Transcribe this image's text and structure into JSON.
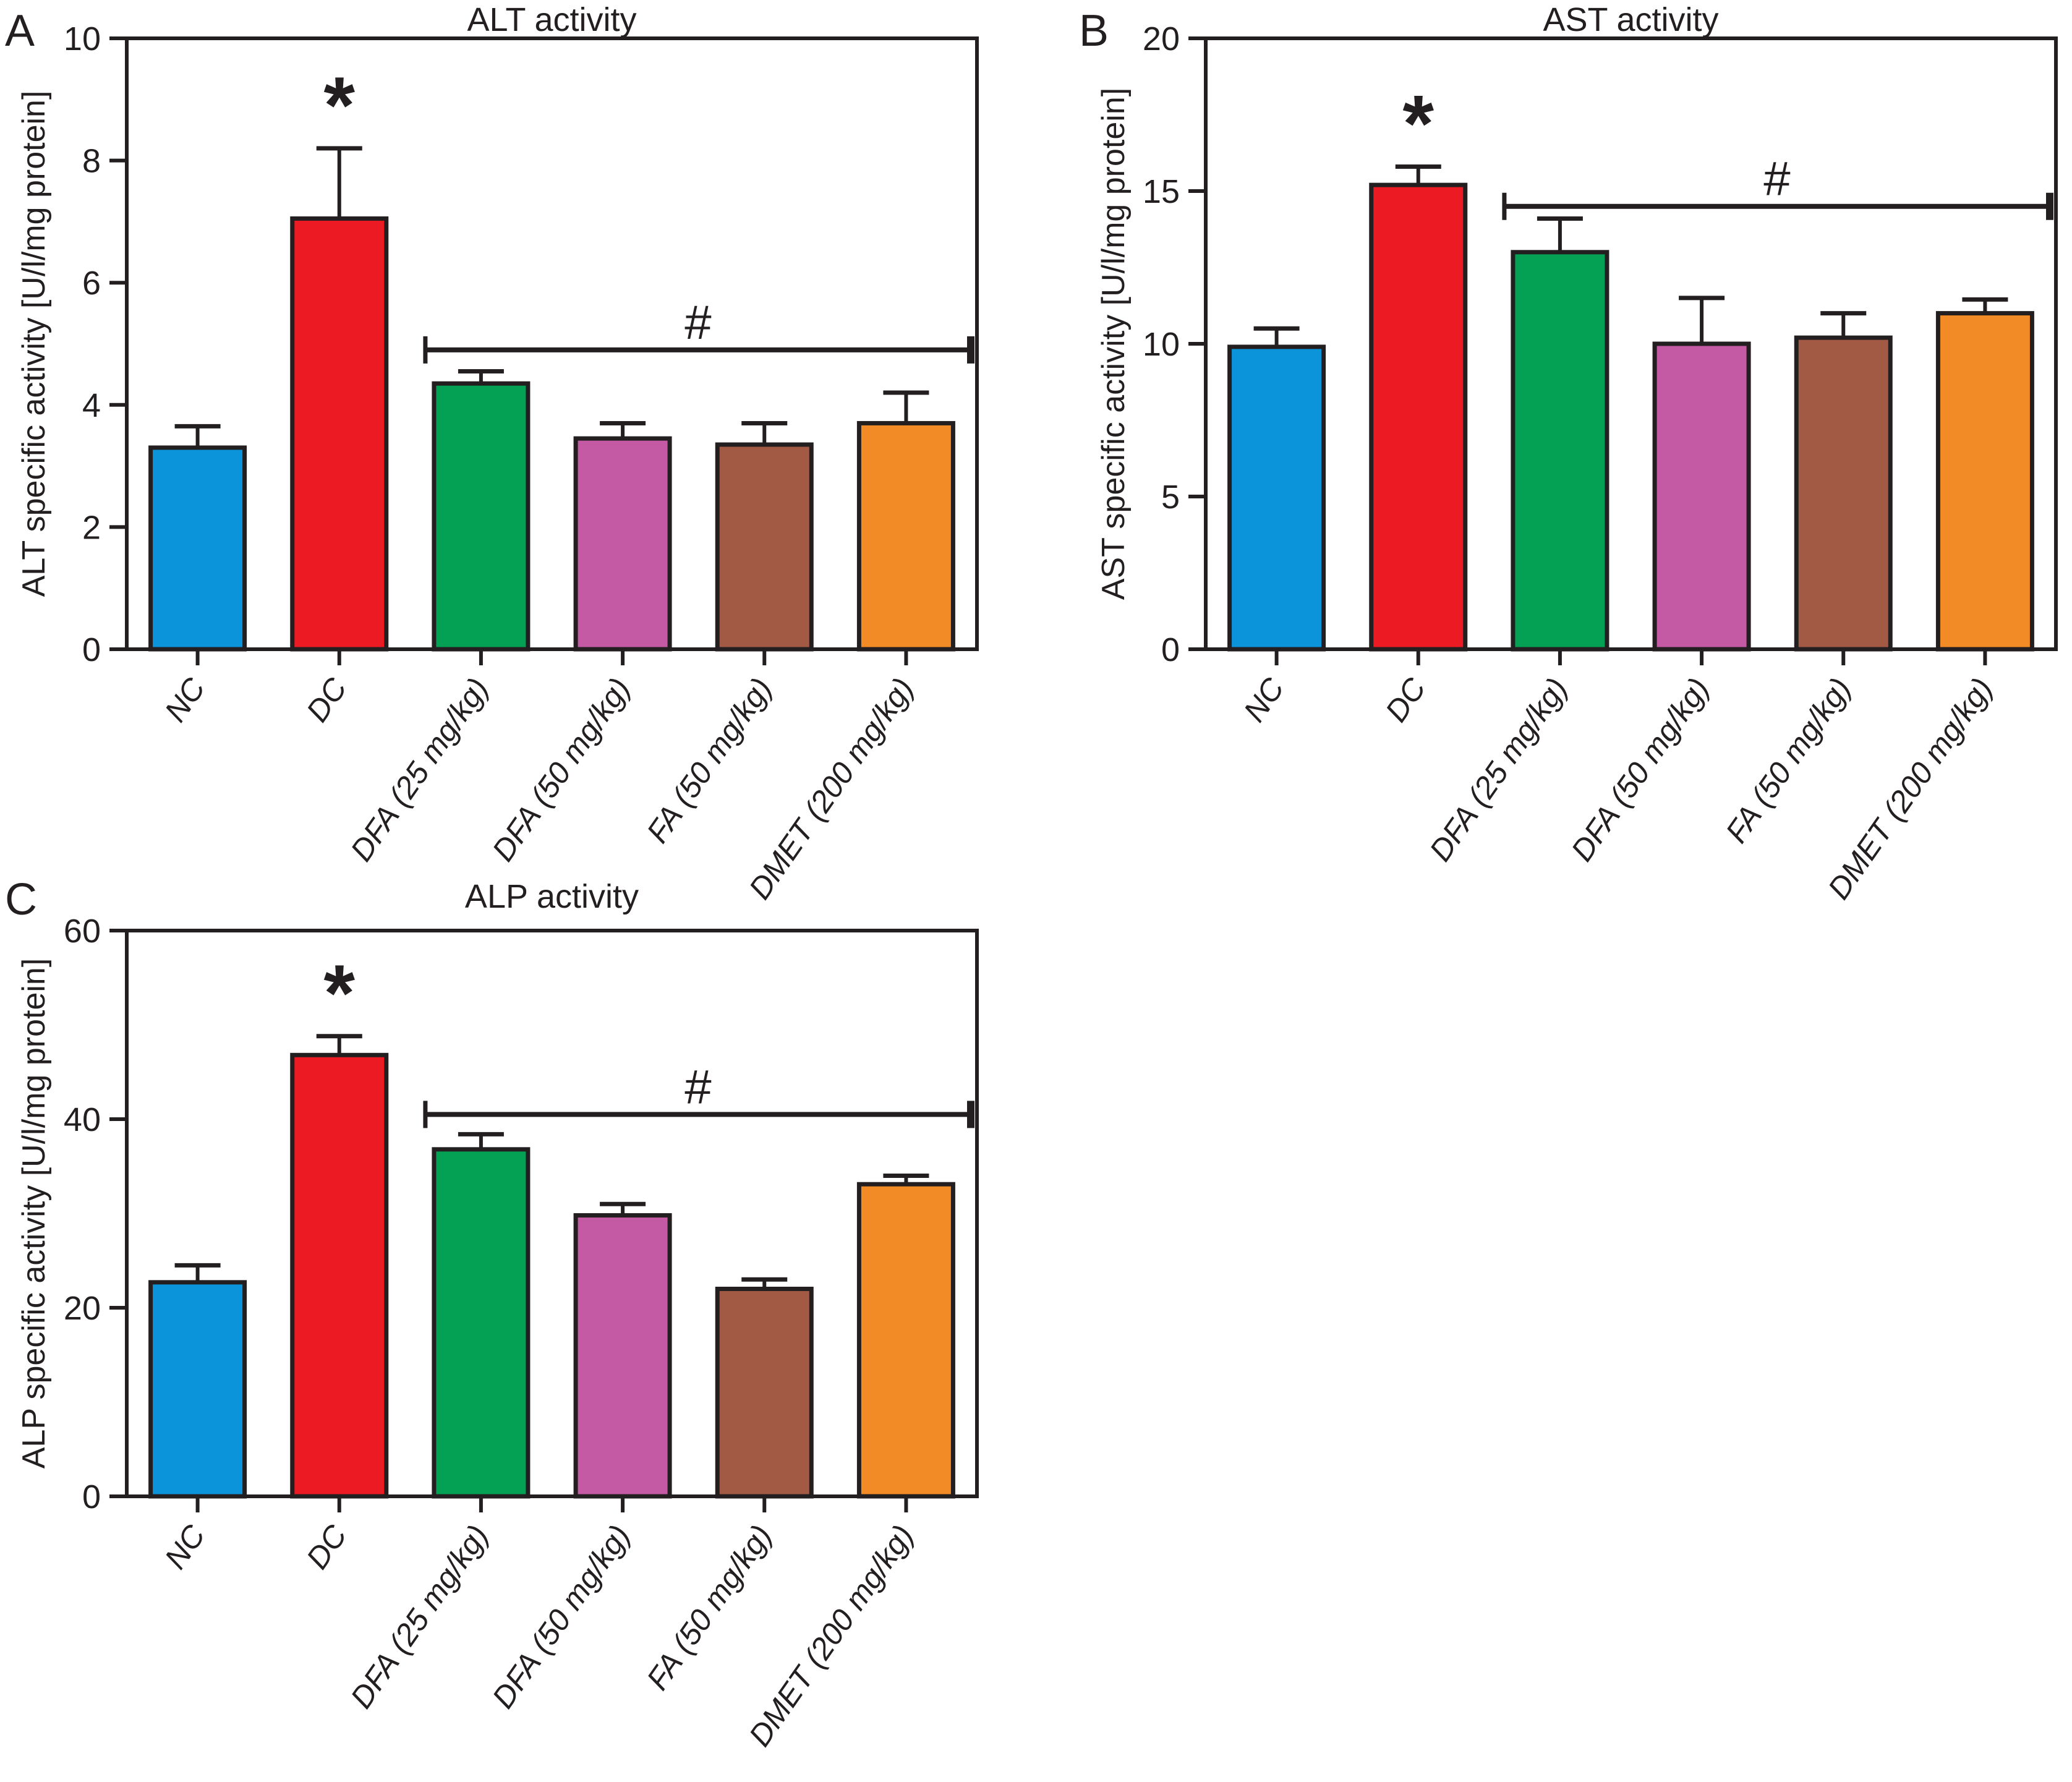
{
  "figure": {
    "background": "#FFFFFF",
    "ink_color": "#231F20",
    "panel_letters": [
      "A",
      "B",
      "C"
    ],
    "bar_colors": [
      "#0C94DB",
      "#EC1B23",
      "#04A155",
      "#C45AA4",
      "#A35A44",
      "#F28B25"
    ]
  },
  "chart_data": [
    {
      "type": "bar",
      "panel": "A",
      "title": "ALT activity",
      "ylabel": "ALT specific activity [U/l/mg protein]",
      "xlabel": "",
      "ylim": [
        0,
        10
      ],
      "yticks": [
        0,
        2,
        4,
        6,
        8,
        10
      ],
      "grid": false,
      "legend": "none",
      "categories": [
        "NC",
        "DC",
        "DFA (25 mg/kg)",
        "DFA (50 mg/kg)",
        "FA (50 mg/kg)",
        "DMET (200 mg/kg)"
      ],
      "values": [
        3.3,
        7.05,
        4.35,
        3.45,
        3.35,
        3.7
      ],
      "errors_sd_upper": [
        0.35,
        1.15,
        0.2,
        0.25,
        0.35,
        0.5
      ],
      "significance": {
        "star": {
          "symbol": "*",
          "category": "DC"
        },
        "bracket": {
          "symbol": "#",
          "from_category": "DFA (25 mg/kg)",
          "to_category": "DMET (200 mg/kg)",
          "at_value": 4.9
        }
      }
    },
    {
      "type": "bar",
      "panel": "B",
      "title": "AST activity",
      "ylabel": "AST specific activity [U/l/mg protein]",
      "xlabel": "",
      "ylim": [
        0,
        20
      ],
      "yticks": [
        0,
        5,
        10,
        15,
        20
      ],
      "grid": false,
      "legend": "none",
      "categories": [
        "NC",
        "DC",
        "DFA (25 mg/kg)",
        "DFA (50 mg/kg)",
        "FA (50 mg/kg)",
        "DMET (200 mg/kg)"
      ],
      "values": [
        9.9,
        15.2,
        13.0,
        10.0,
        10.2,
        11.0
      ],
      "errors_sd_upper": [
        0.6,
        0.6,
        1.1,
        1.5,
        0.8,
        0.45
      ],
      "significance": {
        "star": {
          "symbol": "*",
          "category": "DC"
        },
        "bracket": {
          "symbol": "#",
          "from_category": "DFA (25 mg/kg)",
          "to_category": "DMET (200 mg/kg)",
          "at_value": 14.5
        }
      }
    },
    {
      "type": "bar",
      "panel": "C",
      "title": "ALP activity",
      "ylabel": "ALP specific activity [U/l/mg protein]",
      "xlabel": "",
      "ylim": [
        0,
        60
      ],
      "yticks": [
        0,
        20,
        40,
        60
      ],
      "grid": false,
      "legend": "none",
      "categories": [
        "NC",
        "DC",
        "DFA (25 mg/kg)",
        "DFA (50 mg/kg)",
        "FA (50 mg/kg)",
        "DMET (200 mg/kg)"
      ],
      "values": [
        22.7,
        46.8,
        36.8,
        29.8,
        22.0,
        33.1
      ],
      "errors_sd_upper": [
        1.8,
        2.0,
        1.6,
        1.2,
        1.0,
        0.9
      ],
      "significance": {
        "star": {
          "symbol": "*",
          "category": "DC"
        },
        "bracket": {
          "symbol": "#",
          "from_category": "DFA (25 mg/kg)",
          "to_category": "DMET (200 mg/kg)",
          "at_value": 40.5
        }
      }
    }
  ]
}
